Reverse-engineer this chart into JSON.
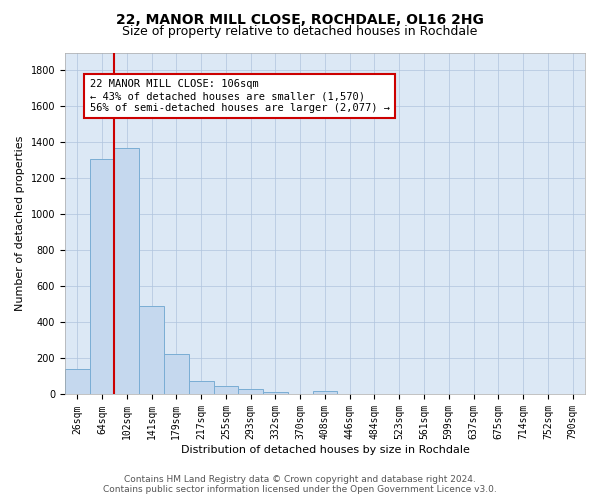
{
  "title": "22, MANOR MILL CLOSE, ROCHDALE, OL16 2HG",
  "subtitle": "Size of property relative to detached houses in Rochdale",
  "xlabel": "Distribution of detached houses by size in Rochdale",
  "ylabel": "Number of detached properties",
  "bar_labels": [
    "26sqm",
    "64sqm",
    "102sqm",
    "141sqm",
    "179sqm",
    "217sqm",
    "255sqm",
    "293sqm",
    "332sqm",
    "370sqm",
    "408sqm",
    "446sqm",
    "484sqm",
    "523sqm",
    "561sqm",
    "599sqm",
    "637sqm",
    "675sqm",
    "714sqm",
    "752sqm",
    "790sqm"
  ],
  "bar_values": [
    140,
    1310,
    1370,
    490,
    225,
    75,
    45,
    30,
    15,
    0,
    20,
    0,
    0,
    0,
    0,
    0,
    0,
    0,
    0,
    0,
    0
  ],
  "bar_color": "#c5d8ee",
  "bar_edge_color": "#7aadd4",
  "property_label": "22 MANOR MILL CLOSE: 106sqm",
  "annotation_line1": "← 43% of detached houses are smaller (1,570)",
  "annotation_line2": "56% of semi-detached houses are larger (2,077) →",
  "vline_color": "#cc0000",
  "vline_position": 1.5,
  "ylim": [
    0,
    1900
  ],
  "yticks": [
    0,
    200,
    400,
    600,
    800,
    1000,
    1200,
    1400,
    1600,
    1800
  ],
  "annotation_box_color": "#cc0000",
  "footer_line1": "Contains HM Land Registry data © Crown copyright and database right 2024.",
  "footer_line2": "Contains public sector information licensed under the Open Government Licence v3.0.",
  "bg_color": "#ffffff",
  "plot_bg_color": "#dce8f5",
  "grid_color": "#b0c4de",
  "title_fontsize": 10,
  "subtitle_fontsize": 9,
  "axis_label_fontsize": 8,
  "tick_fontsize": 7,
  "annotation_fontsize": 7.5,
  "footer_fontsize": 6.5
}
